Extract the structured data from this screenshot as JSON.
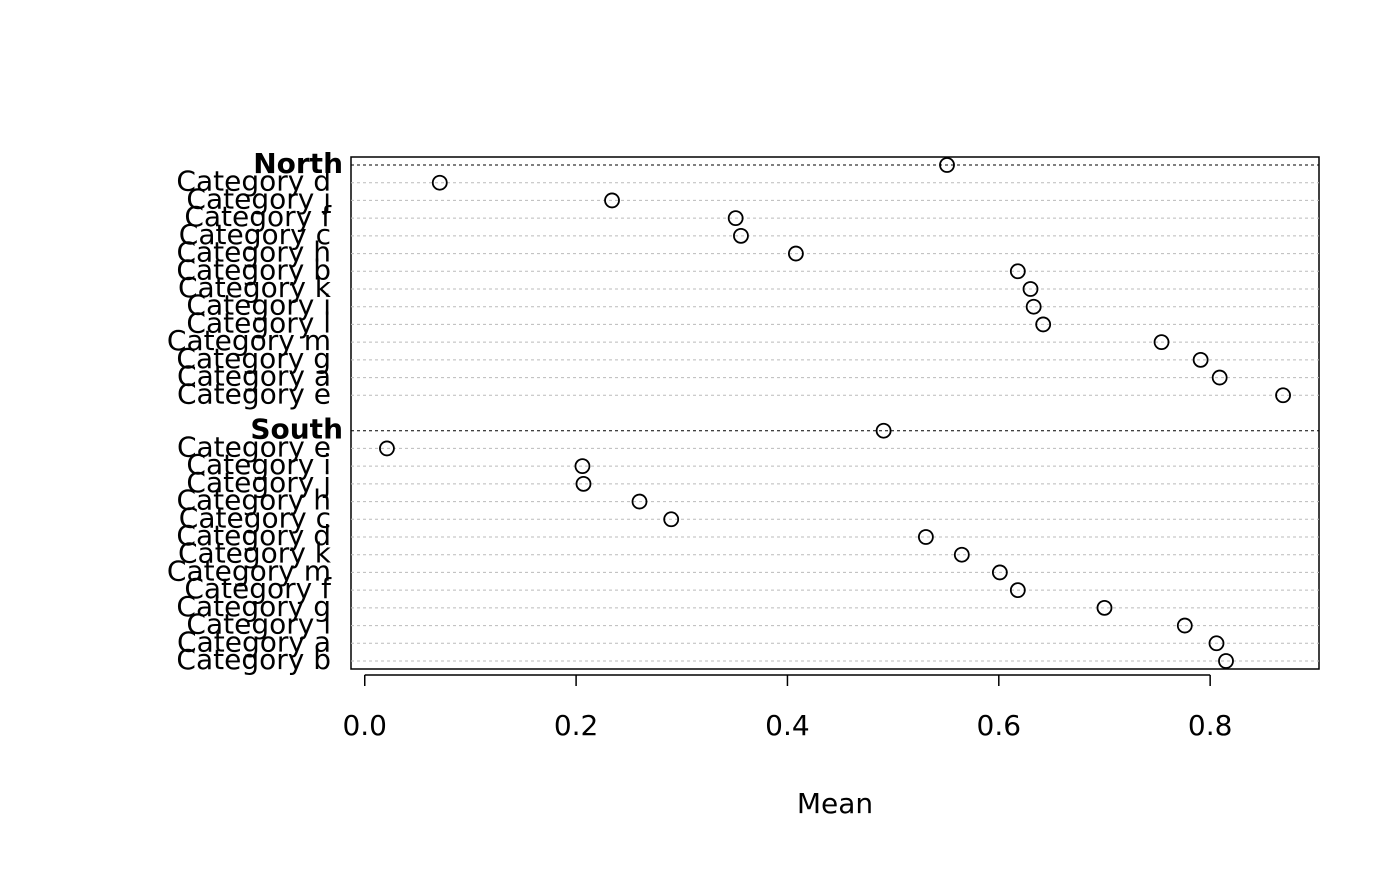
{
  "chart_data": {
    "type": "dot",
    "xlabel": "Mean",
    "groups": [
      {
        "name": "North",
        "value": 0.551,
        "categories": [
          "Category d",
          "Category j",
          "Category f",
          "Category c",
          "Category h",
          "Category b",
          "Category k",
          "Category i",
          "Category l",
          "Category m",
          "Category g",
          "Category a",
          "Category e"
        ],
        "values": [
          0.071,
          0.234,
          0.351,
          0.356,
          0.408,
          0.618,
          0.63,
          0.633,
          0.642,
          0.754,
          0.791,
          0.809,
          0.869
        ]
      },
      {
        "name": "South",
        "value": 0.491,
        "categories": [
          "Category e",
          "Category i",
          "Category j",
          "Category h",
          "Category c",
          "Category d",
          "Category k",
          "Category m",
          "Category f",
          "Category g",
          "Category l",
          "Category a",
          "Category b"
        ],
        "values": [
          0.021,
          0.206,
          0.207,
          0.26,
          0.29,
          0.531,
          0.565,
          0.601,
          0.618,
          0.7,
          0.776,
          0.806,
          0.815
        ]
      }
    ],
    "xlim": [
      -0.013,
      0.903
    ],
    "xticks": [
      {
        "value": 0,
        "label": "0.0"
      },
      0.2,
      0.4,
      0.6,
      0.8
    ],
    "color": "#000000"
  }
}
